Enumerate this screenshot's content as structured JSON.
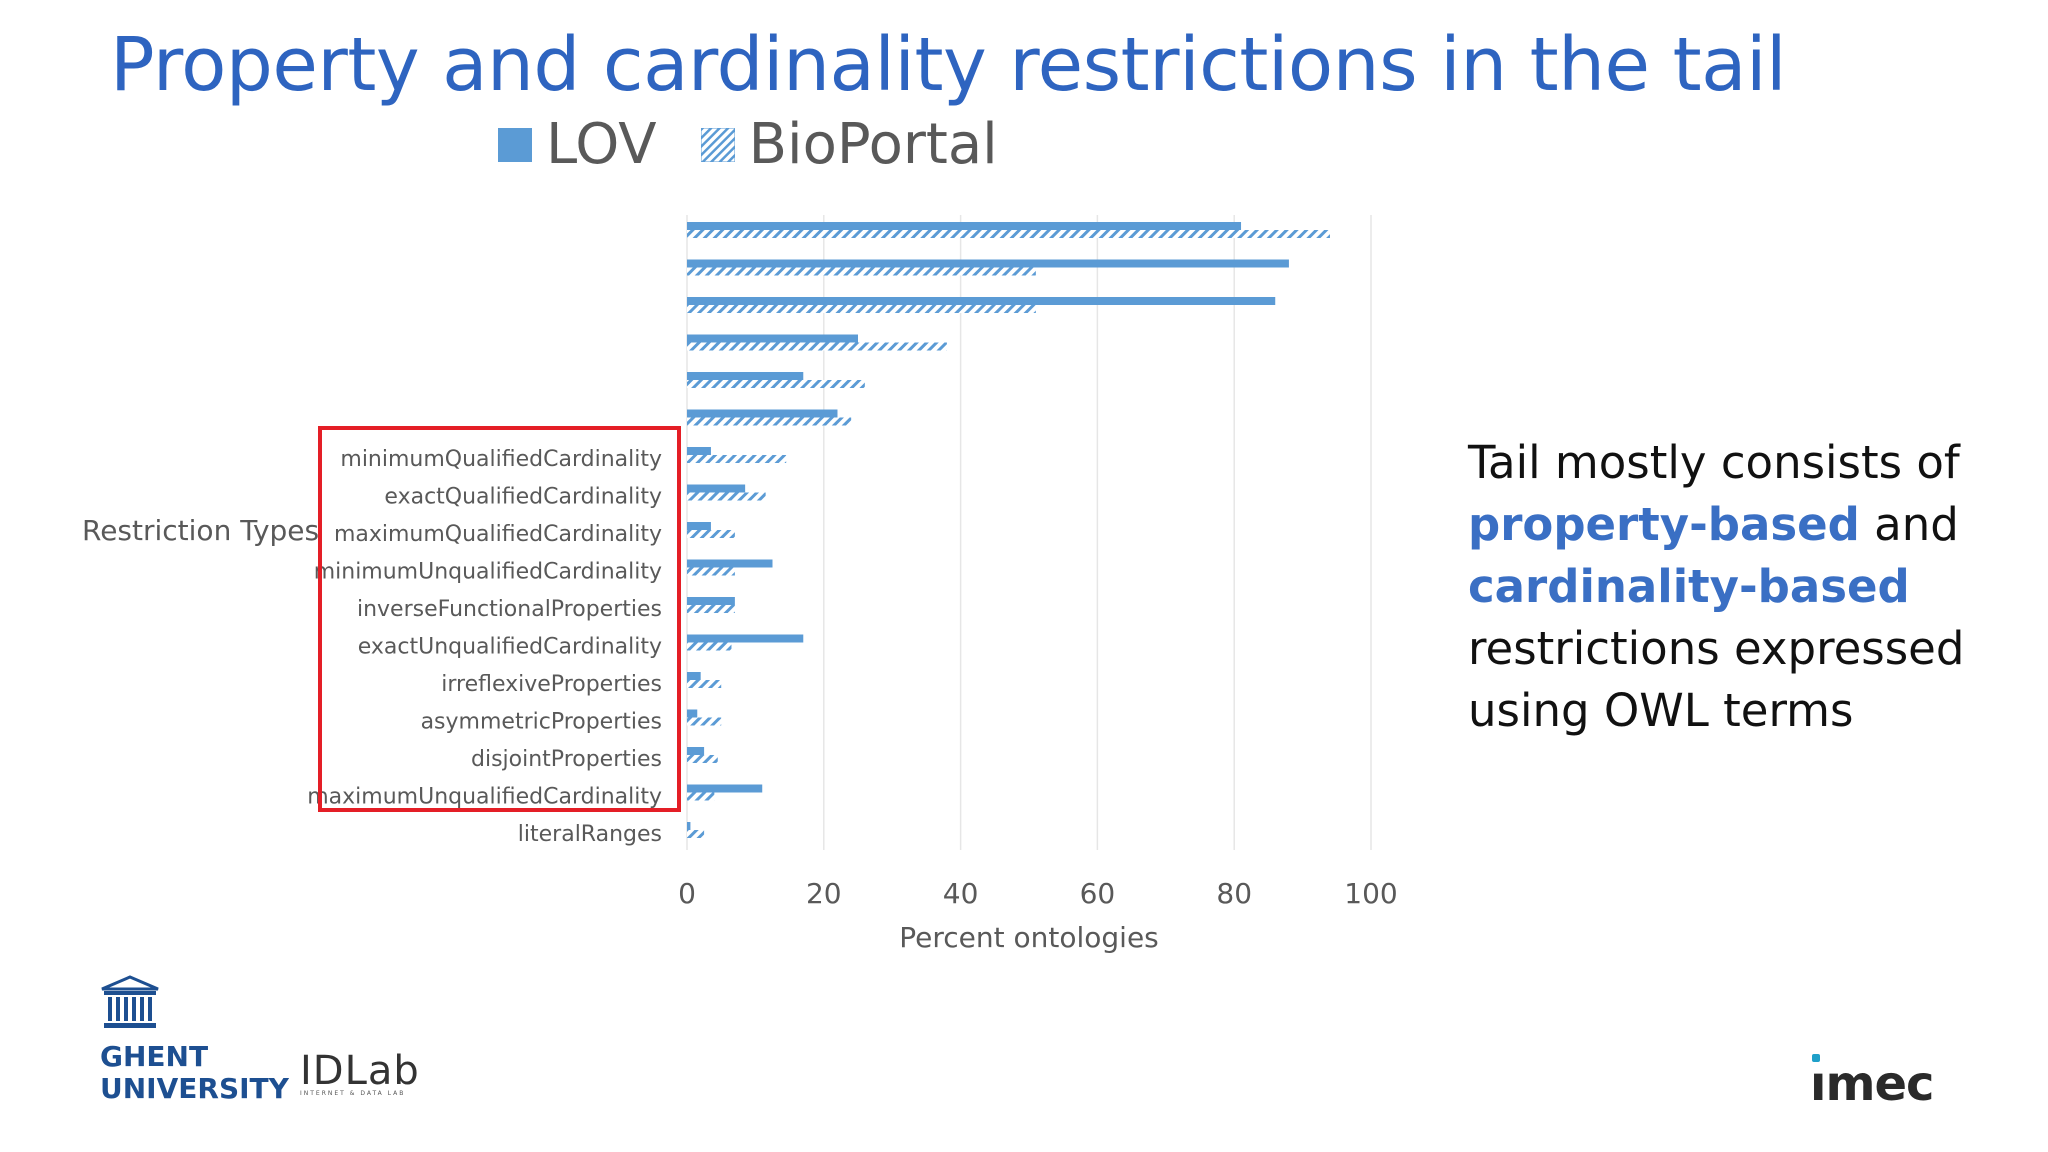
{
  "slide": {
    "title": "Property and cardinality restrictions in the tail",
    "side_text": {
      "line1": "Tail mostly consists of",
      "hl1": "property-based",
      "and": " and",
      "hl2": "cardinality-based",
      "line4": "restrictions expressed",
      "line5": "using OWL terms"
    },
    "logos": {
      "ghent_line1": "GHENT",
      "ghent_line2": "UNIVERSITY",
      "idlab": "IDLab",
      "idlab_sub": "INTERNET & DATA LAB",
      "imec": "ımec"
    },
    "colors": {
      "title": "#2e64c0",
      "bar": "#5b9bd5",
      "highlight_box": "#e41e26",
      "side_highlight": "#3a6fc4"
    }
  },
  "chart_data": {
    "type": "bar",
    "orientation": "horizontal",
    "xlabel": "Percent ontologies",
    "ylabel": "Restriction Types",
    "xlim": [
      0,
      100
    ],
    "xticks": [
      0,
      20,
      40,
      60,
      80,
      100
    ],
    "grid": true,
    "legend_position": "top",
    "series": [
      {
        "name": "LOV",
        "pattern": "solid",
        "values": [
          81,
          88,
          86,
          25,
          17,
          22,
          3.5,
          8.5,
          3.5,
          12.5,
          7,
          17,
          2,
          1.5,
          2.5,
          11,
          0.5
        ]
      },
      {
        "name": "BioPortal",
        "pattern": "hatched",
        "values": [
          94,
          51,
          51,
          38,
          26,
          24,
          14.5,
          11.5,
          7,
          7,
          7,
          6.5,
          5,
          5,
          4.5,
          4,
          2.5
        ]
      }
    ],
    "categories": [
      "",
      "",
      "",
      "",
      "",
      "",
      "minimumQualifiedCardinality",
      "exactQualifiedCardinality",
      "maximumQualifiedCardinality",
      "minimumUnqualifiedCardinality",
      "inverseFunctionalProperties",
      "exactUnqualifiedCardinality",
      "irreflexiveProperties",
      "asymmetricProperties",
      "disjointProperties",
      "maximumUnqualifiedCardinality",
      "literalRanges"
    ],
    "highlighted_categories": [
      "minimumQualifiedCardinality",
      "exactQualifiedCardinality",
      "maximumQualifiedCardinality",
      "minimumUnqualifiedCardinality",
      "inverseFunctionalProperties",
      "exactUnqualifiedCardinality",
      "irreflexiveProperties",
      "asymmetricProperties",
      "disjointProperties",
      "maximumUnqualifiedCardinality"
    ]
  }
}
